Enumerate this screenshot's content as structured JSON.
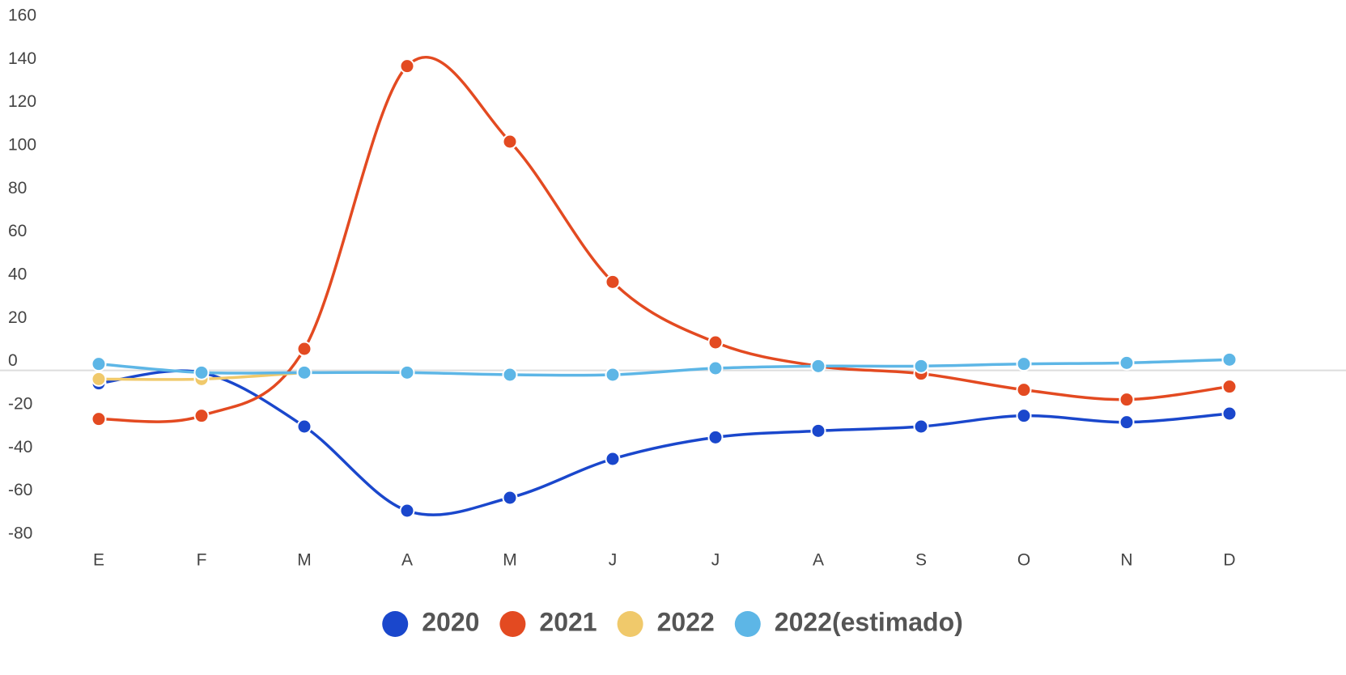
{
  "chart_data": {
    "type": "line",
    "categories": [
      "E",
      "F",
      "M",
      "A",
      "M",
      "J",
      "J",
      "A",
      "S",
      "O",
      "N",
      "D"
    ],
    "series": [
      {
        "name": "2020",
        "color": "#1a47cc",
        "values": [
          -6,
          -1,
          -26,
          -65,
          -59,
          -41,
          -31,
          -28,
          -26,
          -21,
          -24,
          -20
        ]
      },
      {
        "name": "2021",
        "color": "#e34a21",
        "values": [
          -22.5,
          -21,
          10,
          141,
          106,
          41,
          13,
          2,
          -1.5,
          -9,
          -13.5,
          -7.5
        ]
      },
      {
        "name": "2022",
        "color": "#f0c96b",
        "values": [
          -4,
          -4,
          -1,
          null,
          null,
          null,
          null,
          null,
          null,
          null,
          null,
          null
        ]
      },
      {
        "name": "2022(estimado)",
        "color": "#5db6e6",
        "values": [
          3,
          -1,
          -1,
          -1,
          -2,
          -2,
          1,
          2,
          2,
          3,
          3.5,
          5
        ]
      }
    ],
    "ylim": [
      -80,
      160
    ],
    "yticks": [
      -80,
      -60,
      -40,
      -20,
      0,
      20,
      40,
      60,
      80,
      100,
      120,
      140,
      160
    ],
    "grid": false,
    "smooth": true,
    "legend": "bottom"
  }
}
